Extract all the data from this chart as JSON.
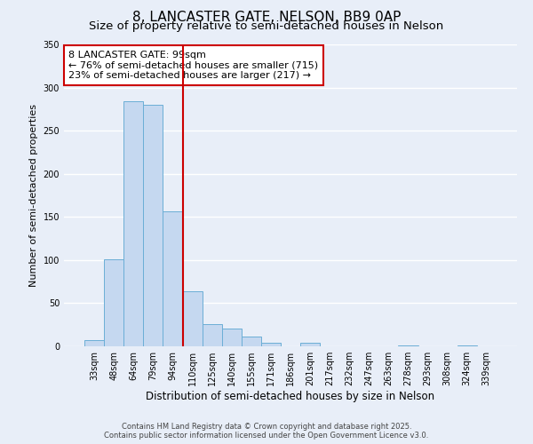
{
  "title": "8, LANCASTER GATE, NELSON, BB9 0AP",
  "subtitle": "Size of property relative to semi-detached houses in Nelson",
  "xlabel": "Distribution of semi-detached houses by size in Nelson",
  "ylabel": "Number of semi-detached properties",
  "categories": [
    "33sqm",
    "48sqm",
    "64sqm",
    "79sqm",
    "94sqm",
    "110sqm",
    "125sqm",
    "140sqm",
    "155sqm",
    "171sqm",
    "186sqm",
    "201sqm",
    "217sqm",
    "232sqm",
    "247sqm",
    "263sqm",
    "278sqm",
    "293sqm",
    "308sqm",
    "324sqm",
    "339sqm"
  ],
  "bar_values": [
    7,
    101,
    284,
    280,
    156,
    64,
    26,
    21,
    11,
    4,
    0,
    4,
    0,
    0,
    0,
    0,
    1,
    0,
    0,
    1,
    0
  ],
  "bar_color": "#c5d8f0",
  "bar_edge_color": "#6baed6",
  "vline_x": 4.5,
  "vline_color": "#cc0000",
  "ylim": [
    0,
    350
  ],
  "yticks": [
    0,
    50,
    100,
    150,
    200,
    250,
    300,
    350
  ],
  "annotation_text": "8 LANCASTER GATE: 99sqm\n← 76% of semi-detached houses are smaller (715)\n23% of semi-detached houses are larger (217) →",
  "annotation_box_color": "#ffffff",
  "annotation_box_edge": "#cc0000",
  "footer1": "Contains HM Land Registry data © Crown copyright and database right 2025.",
  "footer2": "Contains public sector information licensed under the Open Government Licence v3.0.",
  "bg_color": "#e8eef8",
  "grid_color": "#ffffff",
  "title_fontsize": 11,
  "subtitle_fontsize": 9.5
}
